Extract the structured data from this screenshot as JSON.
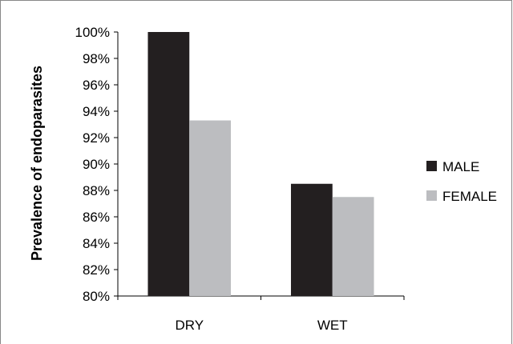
{
  "chart_data": {
    "type": "bar",
    "categories": [
      "DRY",
      "WET"
    ],
    "series": [
      {
        "name": "MALE",
        "values": [
          100,
          88.5
        ],
        "color": "#231f20"
      },
      {
        "name": "FEMALE",
        "values": [
          93.3,
          87.5
        ],
        "color": "#bcbdc0"
      }
    ],
    "title": "",
    "xlabel": "",
    "ylabel": "Prevalence of endoparasites",
    "ylim": [
      80,
      100
    ],
    "yticks": [
      80,
      82,
      84,
      86,
      88,
      90,
      92,
      94,
      96,
      98,
      100
    ],
    "ytick_labels": [
      "80%",
      "82%",
      "84%",
      "86%",
      "88%",
      "90%",
      "92%",
      "94%",
      "96%",
      "98%",
      "100%"
    ],
    "grid": false,
    "legend_position": "right"
  }
}
